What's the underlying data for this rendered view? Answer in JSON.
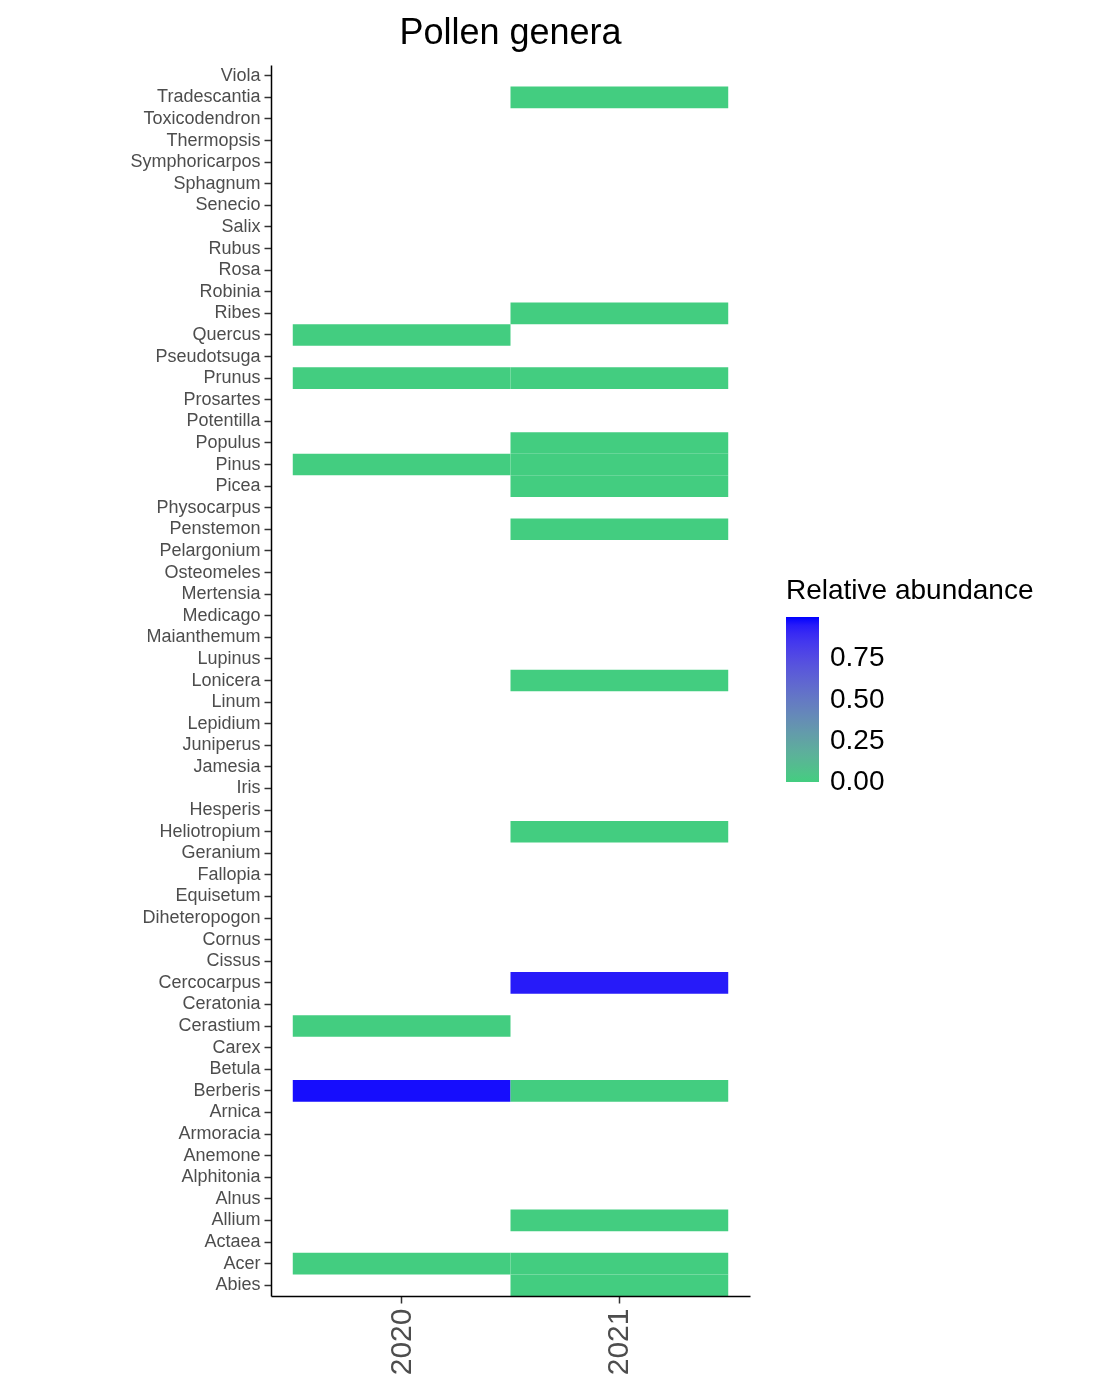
{
  "chart_data": {
    "type": "heatmap",
    "title": "Pollen genera",
    "clabel": "Relative abundance",
    "categories": [
      "2020",
      "2021"
    ],
    "y_categories": [
      "Viola",
      "Tradescantia",
      "Toxicodendron",
      "Thermopsis",
      "Symphoricarpos",
      "Sphagnum",
      "Senecio",
      "Salix",
      "Rubus",
      "Rosa",
      "Robinia",
      "Ribes",
      "Quercus",
      "Pseudotsuga",
      "Prunus",
      "Prosartes",
      "Potentilla",
      "Populus",
      "Pinus",
      "Picea",
      "Physocarpus",
      "Penstemon",
      "Pelargonium",
      "Osteomeles",
      "Mertensia",
      "Medicago",
      "Maianthemum",
      "Lupinus",
      "Lonicera",
      "Linum",
      "Lepidium",
      "Juniperus",
      "Jamesia",
      "Iris",
      "Hesperis",
      "Heliotropium",
      "Geranium",
      "Fallopia",
      "Equisetum",
      "Diheteropogon",
      "Cornus",
      "Cissus",
      "Cercocarpus",
      "Ceratonia",
      "Cerastium",
      "Carex",
      "Betula",
      "Berberis",
      "Arnica",
      "Armoracia",
      "Anemone",
      "Alphitonia",
      "Alnus",
      "Allium",
      "Actaea",
      "Acer",
      "Abies"
    ],
    "cells": [
      [
        null,
        null
      ],
      [
        null,
        0
      ],
      [
        null,
        null
      ],
      [
        null,
        null
      ],
      [
        null,
        null
      ],
      [
        null,
        null
      ],
      [
        null,
        null
      ],
      [
        null,
        null
      ],
      [
        null,
        null
      ],
      [
        null,
        null
      ],
      [
        null,
        null
      ],
      [
        null,
        0
      ],
      [
        0,
        null
      ],
      [
        null,
        null
      ],
      [
        0,
        0
      ],
      [
        null,
        null
      ],
      [
        null,
        null
      ],
      [
        null,
        0
      ],
      [
        0,
        0
      ],
      [
        null,
        0
      ],
      [
        null,
        null
      ],
      [
        null,
        0
      ],
      [
        null,
        null
      ],
      [
        null,
        null
      ],
      [
        null,
        null
      ],
      [
        null,
        null
      ],
      [
        null,
        null
      ],
      [
        null,
        null
      ],
      [
        null,
        0
      ],
      [
        null,
        null
      ],
      [
        null,
        null
      ],
      [
        null,
        null
      ],
      [
        null,
        null
      ],
      [
        null,
        null
      ],
      [
        null,
        null
      ],
      [
        null,
        0
      ],
      [
        null,
        null
      ],
      [
        null,
        null
      ],
      [
        null,
        null
      ],
      [
        null,
        null
      ],
      [
        null,
        null
      ],
      [
        null,
        null
      ],
      [
        null,
        0.95
      ],
      [
        null,
        null
      ],
      [
        0,
        null
      ],
      [
        null,
        null
      ],
      [
        null,
        null
      ],
      [
        0.98,
        0
      ],
      [
        null,
        null
      ],
      [
        null,
        null
      ],
      [
        null,
        null
      ],
      [
        null,
        null
      ],
      [
        null,
        null
      ],
      [
        null,
        0
      ],
      [
        null,
        null
      ],
      [
        0,
        0
      ],
      [
        null,
        0
      ]
    ],
    "clim": [
      0,
      1
    ],
    "cticks": [
      {
        "value": 0,
        "label": "0.00"
      },
      {
        "value": 0.25,
        "label": "0.25"
      },
      {
        "value": 0.5,
        "label": "0.50"
      },
      {
        "value": 0.75,
        "label": "0.75"
      }
    ]
  }
}
